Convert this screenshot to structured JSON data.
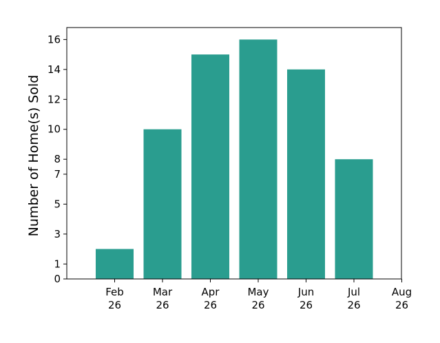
{
  "chart_data": {
    "type": "bar",
    "title": "",
    "xlabel": "",
    "ylabel": "Number of Home(s) Sold",
    "categories": [
      "Feb\n26",
      "Mar\n26",
      "Apr\n26",
      "May\n26",
      "Jun\n26",
      "Jul\n26"
    ],
    "values": [
      2,
      10,
      15,
      16,
      14,
      8
    ],
    "x_tick_labels": [
      [
        "Feb",
        "26"
      ],
      [
        "Mar",
        "26"
      ],
      [
        "Apr",
        "26"
      ],
      [
        "May",
        "26"
      ],
      [
        "Jun",
        "26"
      ],
      [
        "Jul",
        "26"
      ],
      [
        "Aug",
        "26"
      ]
    ],
    "y_ticks": [
      0,
      1,
      3,
      5,
      7,
      8,
      10,
      12,
      14,
      16
    ],
    "ylim": [
      0,
      16.8
    ],
    "grid": false,
    "legend": "none",
    "bar_color": "#2a9d8f",
    "axis_color": "#000000"
  }
}
